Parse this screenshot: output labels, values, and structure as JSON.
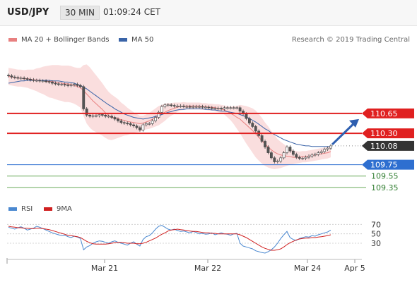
{
  "header": {
    "symbol": "USD/JPY",
    "timeframe": "30 MIN",
    "time": "01:09:24 CET"
  },
  "legend": {
    "ma20_bb": "MA 20 + Bollinger Bands",
    "ma50": "MA 50",
    "rsi": "RSI",
    "ma9": "9MA",
    "source": "Research © 2019 Trading Central"
  },
  "colors": {
    "ma20": "#e88080",
    "band": "#f8d3d3",
    "ma50": "#3a64a8",
    "rsi": "#4a88d0",
    "ma9": "#d02020",
    "resistance": "#e02020",
    "pivot": "#2e6fd0",
    "support": "#6aaa5a",
    "current": "#333333",
    "arrow": "#2e5fb0",
    "candle_up": "#ffffff",
    "candle_down": "#555555"
  },
  "chart_data": [
    {
      "type": "line",
      "title": "USD/JPY 30 MIN",
      "x_labels": [
        "Mar 21",
        "Mar 22",
        "Mar 24",
        "Apr 5"
      ],
      "levels": [
        {
          "value": 110.65,
          "label": "110.65",
          "kind": "resistance"
        },
        {
          "value": 110.3,
          "label": "110.30",
          "kind": "resistance"
        },
        {
          "value": 110.08,
          "label": "110.08",
          "kind": "current"
        },
        {
          "value": 109.75,
          "label": "109.75",
          "kind": "pivot"
        },
        {
          "value": 109.55,
          "label": "109.55",
          "kind": "support"
        },
        {
          "value": 109.35,
          "label": "109.35",
          "kind": "support"
        }
      ],
      "forecast_target": 110.65,
      "ylim": [
        109.2,
        111.75
      ],
      "series": [
        {
          "name": "Price",
          "values": [
            111.31,
            111.29,
            111.28,
            111.27,
            111.27,
            111.26,
            111.25,
            111.24,
            111.23,
            111.23,
            111.22,
            111.22,
            111.21,
            111.2,
            111.18,
            111.17,
            111.16,
            111.16,
            111.15,
            111.14,
            111.15,
            111.16,
            111.14,
            111.12,
            110.73,
            110.62,
            110.6,
            110.61,
            110.61,
            110.63,
            110.62,
            110.6,
            110.6,
            110.58,
            110.55,
            110.52,
            110.49,
            110.48,
            110.47,
            110.45,
            110.43,
            110.4,
            110.36,
            110.45,
            110.47,
            110.47,
            110.52,
            110.58,
            110.67,
            110.77,
            110.8,
            110.8,
            110.79,
            110.78,
            110.78,
            110.78,
            110.77,
            110.77,
            110.76,
            110.77,
            110.77,
            110.77,
            110.76,
            110.76,
            110.75,
            110.74,
            110.74,
            110.74,
            110.73,
            110.75,
            110.75,
            110.75,
            110.75,
            110.75,
            110.69,
            110.64,
            110.56,
            110.48,
            110.42,
            110.34,
            110.26,
            110.16,
            110.06,
            109.96,
            109.87,
            109.8,
            109.81,
            109.87,
            109.96,
            110.06,
            109.99,
            109.93,
            109.88,
            109.86,
            109.86,
            109.88,
            109.9,
            109.92,
            109.93,
            109.96,
            109.98,
            110.02,
            110.04,
            110.08
          ]
        },
        {
          "name": "MA 20",
          "values": [
            111.3,
            111.29,
            111.28,
            111.27,
            111.27,
            111.26,
            111.26,
            111.25,
            111.24,
            111.24,
            111.23,
            111.23,
            111.22,
            111.21,
            111.21,
            111.2,
            111.19,
            111.18,
            111.17,
            111.17,
            111.16,
            111.14,
            111.12,
            111.1,
            111.05,
            110.99,
            110.93,
            110.87,
            110.82,
            110.77,
            110.72,
            110.66,
            110.61,
            110.58,
            110.57,
            110.56,
            110.54,
            110.53,
            110.51,
            110.5,
            110.49,
            110.48,
            110.47,
            110.48,
            110.5,
            110.52,
            110.55,
            110.58,
            110.61,
            110.64,
            110.67,
            110.7,
            110.72,
            110.74,
            110.76,
            110.77,
            110.78,
            110.78,
            110.78,
            110.78,
            110.78,
            110.78,
            110.77,
            110.77,
            110.76,
            110.76,
            110.75,
            110.74,
            110.73,
            110.71,
            110.68,
            110.65,
            110.62,
            110.58,
            110.55,
            110.5,
            110.45,
            110.4,
            110.35,
            110.29,
            110.23,
            110.17,
            110.11,
            110.06,
            110.01,
            109.97,
            109.94,
            109.92,
            109.91,
            109.9,
            109.89,
            109.88,
            109.88,
            109.88,
            109.89,
            109.89,
            109.9,
            109.91,
            109.92,
            109.93,
            109.94,
            109.95,
            109.96,
            109.98
          ]
        },
        {
          "name": "MA 50",
          "values": [
            111.18,
            111.19,
            111.2,
            111.21,
            111.22,
            111.22,
            111.23,
            111.23,
            111.23,
            111.23,
            111.23,
            111.23,
            111.23,
            111.23,
            111.22,
            111.22,
            111.22,
            111.21,
            111.2,
            111.2,
            111.19,
            111.18,
            111.16,
            111.14,
            111.11,
            111.08,
            111.04,
            111.0,
            110.96,
            110.92,
            110.88,
            110.84,
            110.8,
            110.77,
            110.73,
            110.7,
            110.67,
            110.64,
            110.62,
            110.6,
            110.58,
            110.57,
            110.56,
            110.55,
            110.56,
            110.57,
            110.58,
            110.6,
            110.61,
            110.63,
            110.65,
            110.67,
            110.68,
            110.7,
            110.71,
            110.72,
            110.72,
            110.73,
            110.73,
            110.73,
            110.73,
            110.73,
            110.73,
            110.72,
            110.72,
            110.71,
            110.71,
            110.7,
            110.69,
            110.69,
            110.68,
            110.67,
            110.66,
            110.65,
            110.63,
            110.61,
            110.59,
            110.56,
            110.53,
            110.5,
            110.46,
            110.42,
            110.38,
            110.35,
            110.31,
            110.28,
            110.25,
            110.22,
            110.19,
            110.17,
            110.15,
            110.13,
            110.11,
            110.1,
            110.09,
            110.08,
            110.08,
            110.07,
            110.07,
            110.07,
            110.07,
            110.07,
            110.07,
            110.07
          ]
        },
        {
          "name": "Bollinger Bands",
          "band_width": [
            0.15,
            0.15,
            0.15,
            0.15,
            0.15,
            0.15,
            0.16,
            0.17,
            0.18,
            0.2,
            0.22,
            0.24,
            0.26,
            0.28,
            0.29,
            0.3,
            0.31,
            0.31,
            0.32,
            0.32,
            0.32,
            0.32,
            0.33,
            0.35,
            0.45,
            0.52,
            0.53,
            0.52,
            0.5,
            0.48,
            0.46,
            0.44,
            0.42,
            0.4,
            0.37,
            0.34,
            0.3,
            0.27,
            0.24,
            0.21,
            0.18,
            0.16,
            0.14,
            0.13,
            0.13,
            0.14,
            0.15,
            0.16,
            0.17,
            0.16,
            0.15,
            0.13,
            0.11,
            0.1,
            0.08,
            0.07,
            0.07,
            0.06,
            0.06,
            0.06,
            0.06,
            0.06,
            0.06,
            0.06,
            0.06,
            0.06,
            0.06,
            0.07,
            0.07,
            0.08,
            0.1,
            0.12,
            0.16,
            0.2,
            0.25,
            0.29,
            0.33,
            0.36,
            0.39,
            0.41,
            0.41,
            0.4,
            0.38,
            0.36,
            0.33,
            0.3,
            0.26,
            0.23,
            0.2,
            0.17,
            0.14,
            0.12,
            0.11,
            0.1,
            0.1,
            0.1,
            0.1,
            0.1,
            0.1,
            0.1,
            0.1,
            0.1,
            0.1,
            0.1
          ]
        }
      ]
    },
    {
      "type": "line",
      "title": "RSI",
      "yticks": [
        30,
        50,
        70
      ],
      "ylim": [
        0,
        90
      ],
      "series": [
        {
          "name": "RSI",
          "values": [
            64,
            62,
            60,
            63,
            65,
            62,
            58,
            60,
            62,
            66,
            64,
            61,
            58,
            55,
            52,
            50,
            48,
            46,
            47,
            44,
            42,
            45,
            43,
            40,
            16,
            22,
            25,
            30,
            33,
            35,
            34,
            32,
            30,
            33,
            35,
            32,
            30,
            28,
            26,
            30,
            33,
            28,
            24,
            38,
            44,
            46,
            52,
            60,
            66,
            68,
            64,
            60,
            58,
            60,
            57,
            55,
            56,
            54,
            52,
            55,
            53,
            50,
            51,
            49,
            50,
            52,
            48,
            50,
            52,
            50,
            49,
            47,
            50,
            51,
            30,
            24,
            22,
            20,
            18,
            14,
            12,
            10,
            9,
            12,
            16,
            22,
            30,
            40,
            48,
            55,
            42,
            38,
            36,
            40,
            42,
            44,
            43,
            46,
            45,
            48,
            50,
            52,
            54,
            58
          ]
        },
        {
          "name": "9MA",
          "values": [
            66,
            65,
            64,
            63,
            63,
            62,
            62,
            61,
            61,
            62,
            62,
            61,
            60,
            59,
            57,
            55,
            53,
            51,
            49,
            47,
            46,
            45,
            44,
            42,
            38,
            34,
            31,
            29,
            28,
            28,
            28,
            28,
            29,
            30,
            31,
            32,
            32,
            31,
            30,
            30,
            30,
            29,
            29,
            30,
            32,
            35,
            38,
            41,
            45,
            49,
            52,
            56,
            58,
            59,
            60,
            59,
            58,
            57,
            56,
            55,
            55,
            54,
            53,
            52,
            52,
            51,
            51,
            50,
            50,
            50,
            50,
            50,
            50,
            50,
            48,
            45,
            42,
            38,
            34,
            30,
            26,
            22,
            19,
            17,
            15,
            15,
            16,
            18,
            22,
            27,
            31,
            34,
            37,
            39,
            40,
            41,
            41,
            42,
            42,
            43,
            44,
            45,
            46,
            48
          ]
        }
      ]
    }
  ]
}
